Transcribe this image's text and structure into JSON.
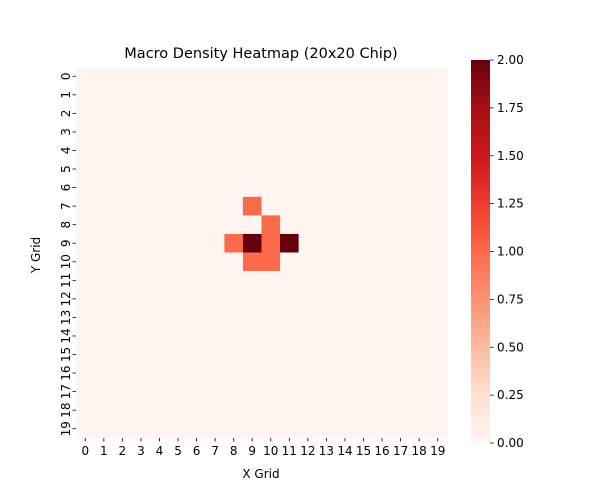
{
  "chart_data": {
    "type": "heatmap",
    "title": "Macro Density Heatmap (20x20 Chip)",
    "xlabel": "X Grid",
    "ylabel": "Y Grid",
    "x_tick_labels": [
      "0",
      "1",
      "2",
      "3",
      "4",
      "5",
      "6",
      "7",
      "8",
      "9",
      "10",
      "11",
      "12",
      "13",
      "14",
      "15",
      "16",
      "17",
      "18",
      "19"
    ],
    "y_tick_labels": [
      "0",
      "1",
      "2",
      "3",
      "4",
      "5",
      "6",
      "7",
      "8",
      "9",
      "10",
      "11",
      "12",
      "13",
      "14",
      "15",
      "16",
      "17",
      "18",
      "19"
    ],
    "rows": 20,
    "cols": 20,
    "nonzero_cells": [
      {
        "x": 9,
        "y": 7,
        "value": 1
      },
      {
        "x": 10,
        "y": 8,
        "value": 1
      },
      {
        "x": 8,
        "y": 9,
        "value": 1
      },
      {
        "x": 9,
        "y": 9,
        "value": 2
      },
      {
        "x": 10,
        "y": 9,
        "value": 1
      },
      {
        "x": 11,
        "y": 9,
        "value": 2
      },
      {
        "x": 9,
        "y": 10,
        "value": 1
      },
      {
        "x": 10,
        "y": 10,
        "value": 1
      }
    ],
    "default_value": 0,
    "colorscale": "Reds",
    "vmin": 0,
    "vmax": 2,
    "colorbar_ticks": [
      "0.00",
      "0.25",
      "0.50",
      "0.75",
      "1.00",
      "1.25",
      "1.50",
      "1.75",
      "2.00"
    ]
  }
}
